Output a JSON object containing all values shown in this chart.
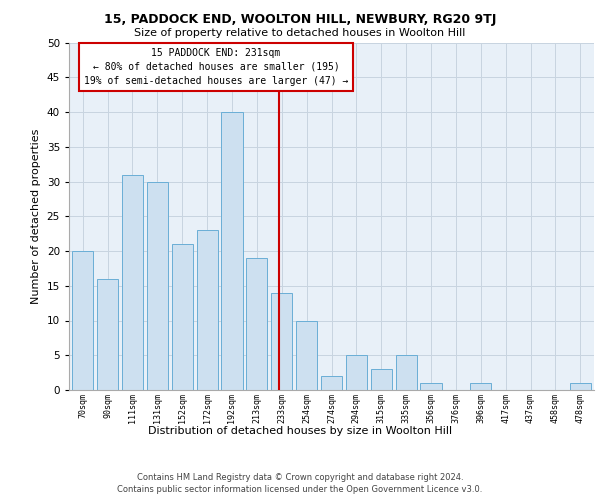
{
  "title": "15, PADDOCK END, WOOLTON HILL, NEWBURY, RG20 9TJ",
  "subtitle": "Size of property relative to detached houses in Woolton Hill",
  "xlabel": "Distribution of detached houses by size in Woolton Hill",
  "ylabel": "Number of detached properties",
  "footer_line1": "Contains HM Land Registry data © Crown copyright and database right 2024.",
  "footer_line2": "Contains public sector information licensed under the Open Government Licence v3.0.",
  "bar_labels": [
    "70sqm",
    "90sqm",
    "111sqm",
    "131sqm",
    "152sqm",
    "172sqm",
    "192sqm",
    "213sqm",
    "233sqm",
    "254sqm",
    "274sqm",
    "294sqm",
    "315sqm",
    "335sqm",
    "356sqm",
    "376sqm",
    "396sqm",
    "417sqm",
    "437sqm",
    "458sqm",
    "478sqm"
  ],
  "bar_values": [
    20,
    16,
    31,
    30,
    21,
    23,
    40,
    19,
    14,
    10,
    2,
    5,
    3,
    5,
    1,
    0,
    1,
    0,
    0,
    0,
    1
  ],
  "bar_color": "#cde0f0",
  "bar_edge_color": "#6aaed6",
  "grid_color": "#c8d4e0",
  "background_color": "#e8f0f8",
  "vline_x": 7.9,
  "vline_color": "#cc0000",
  "annotation_text": "15 PADDOCK END: 231sqm\n← 80% of detached houses are smaller (195)\n19% of semi-detached houses are larger (47) →",
  "annotation_box_color": "#cc0000",
  "ylim": [
    0,
    50
  ],
  "yticks": [
    0,
    5,
    10,
    15,
    20,
    25,
    30,
    35,
    40,
    45,
    50
  ]
}
